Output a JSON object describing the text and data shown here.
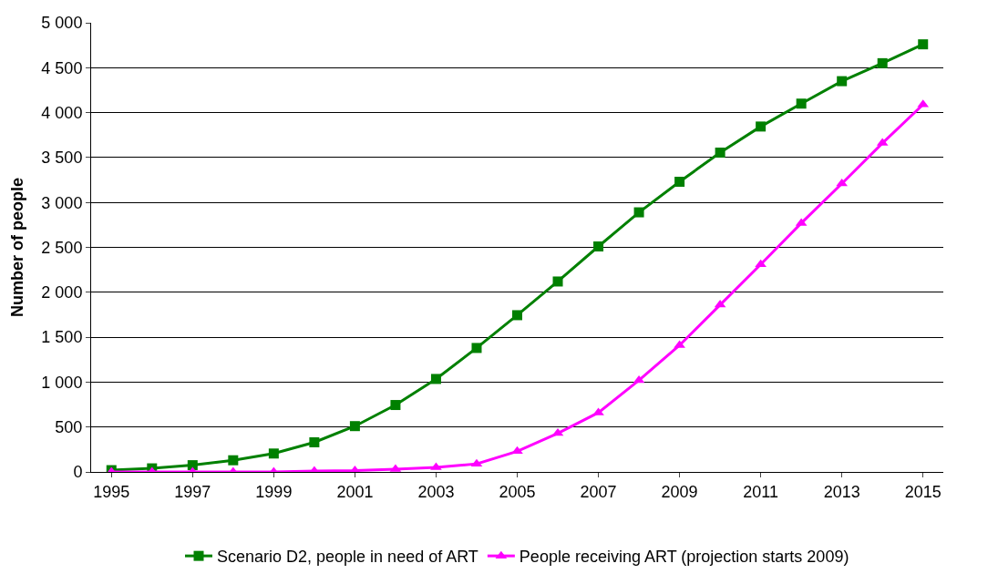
{
  "chart_data": {
    "type": "line",
    "ylabel": "Number of people",
    "categories": [
      "1995",
      null,
      "1997",
      null,
      "1999",
      null,
      "2001",
      null,
      "2003",
      null,
      "2005",
      null,
      "2007",
      null,
      "2009",
      null,
      "2011",
      null,
      "2013",
      null,
      "2015"
    ],
    "series": [
      {
        "name": "Scenario D2, people in need of ART",
        "color": "#008000",
        "marker": "square",
        "values": [
          20,
          40,
          75,
          130,
          205,
          330,
          510,
          745,
          1035,
          1380,
          1745,
          2120,
          2510,
          2890,
          3230,
          3555,
          3845,
          4100,
          4350,
          4550,
          4760
        ]
      },
      {
        "name": "People receiving ART (projection starts 2009)",
        "color": "#ff00ff",
        "marker": "triangle",
        "values": [
          0,
          0,
          0,
          0,
          0,
          10,
          15,
          30,
          50,
          90,
          230,
          430,
          660,
          1020,
          1410,
          1860,
          2310,
          2770,
          3210,
          3660,
          4090
        ]
      }
    ],
    "ylim": [
      0,
      5000
    ],
    "yticks": [
      0,
      500,
      {
        "value": 1000,
        "label": "1 000"
      },
      {
        "value": 1500,
        "label": "1 500"
      },
      {
        "value": 2000,
        "label": "2 000"
      },
      {
        "value": 2500,
        "label": "2 500"
      },
      {
        "value": 3000,
        "label": "3 000"
      },
      {
        "value": 3500,
        "label": "3 500"
      },
      {
        "value": 4000,
        "label": "4 000"
      },
      {
        "value": 4500,
        "label": "4 500"
      },
      {
        "value": 5000,
        "label": "5 000"
      }
    ],
    "grid": "y",
    "legend": "bottom",
    "line_style": "solid"
  }
}
